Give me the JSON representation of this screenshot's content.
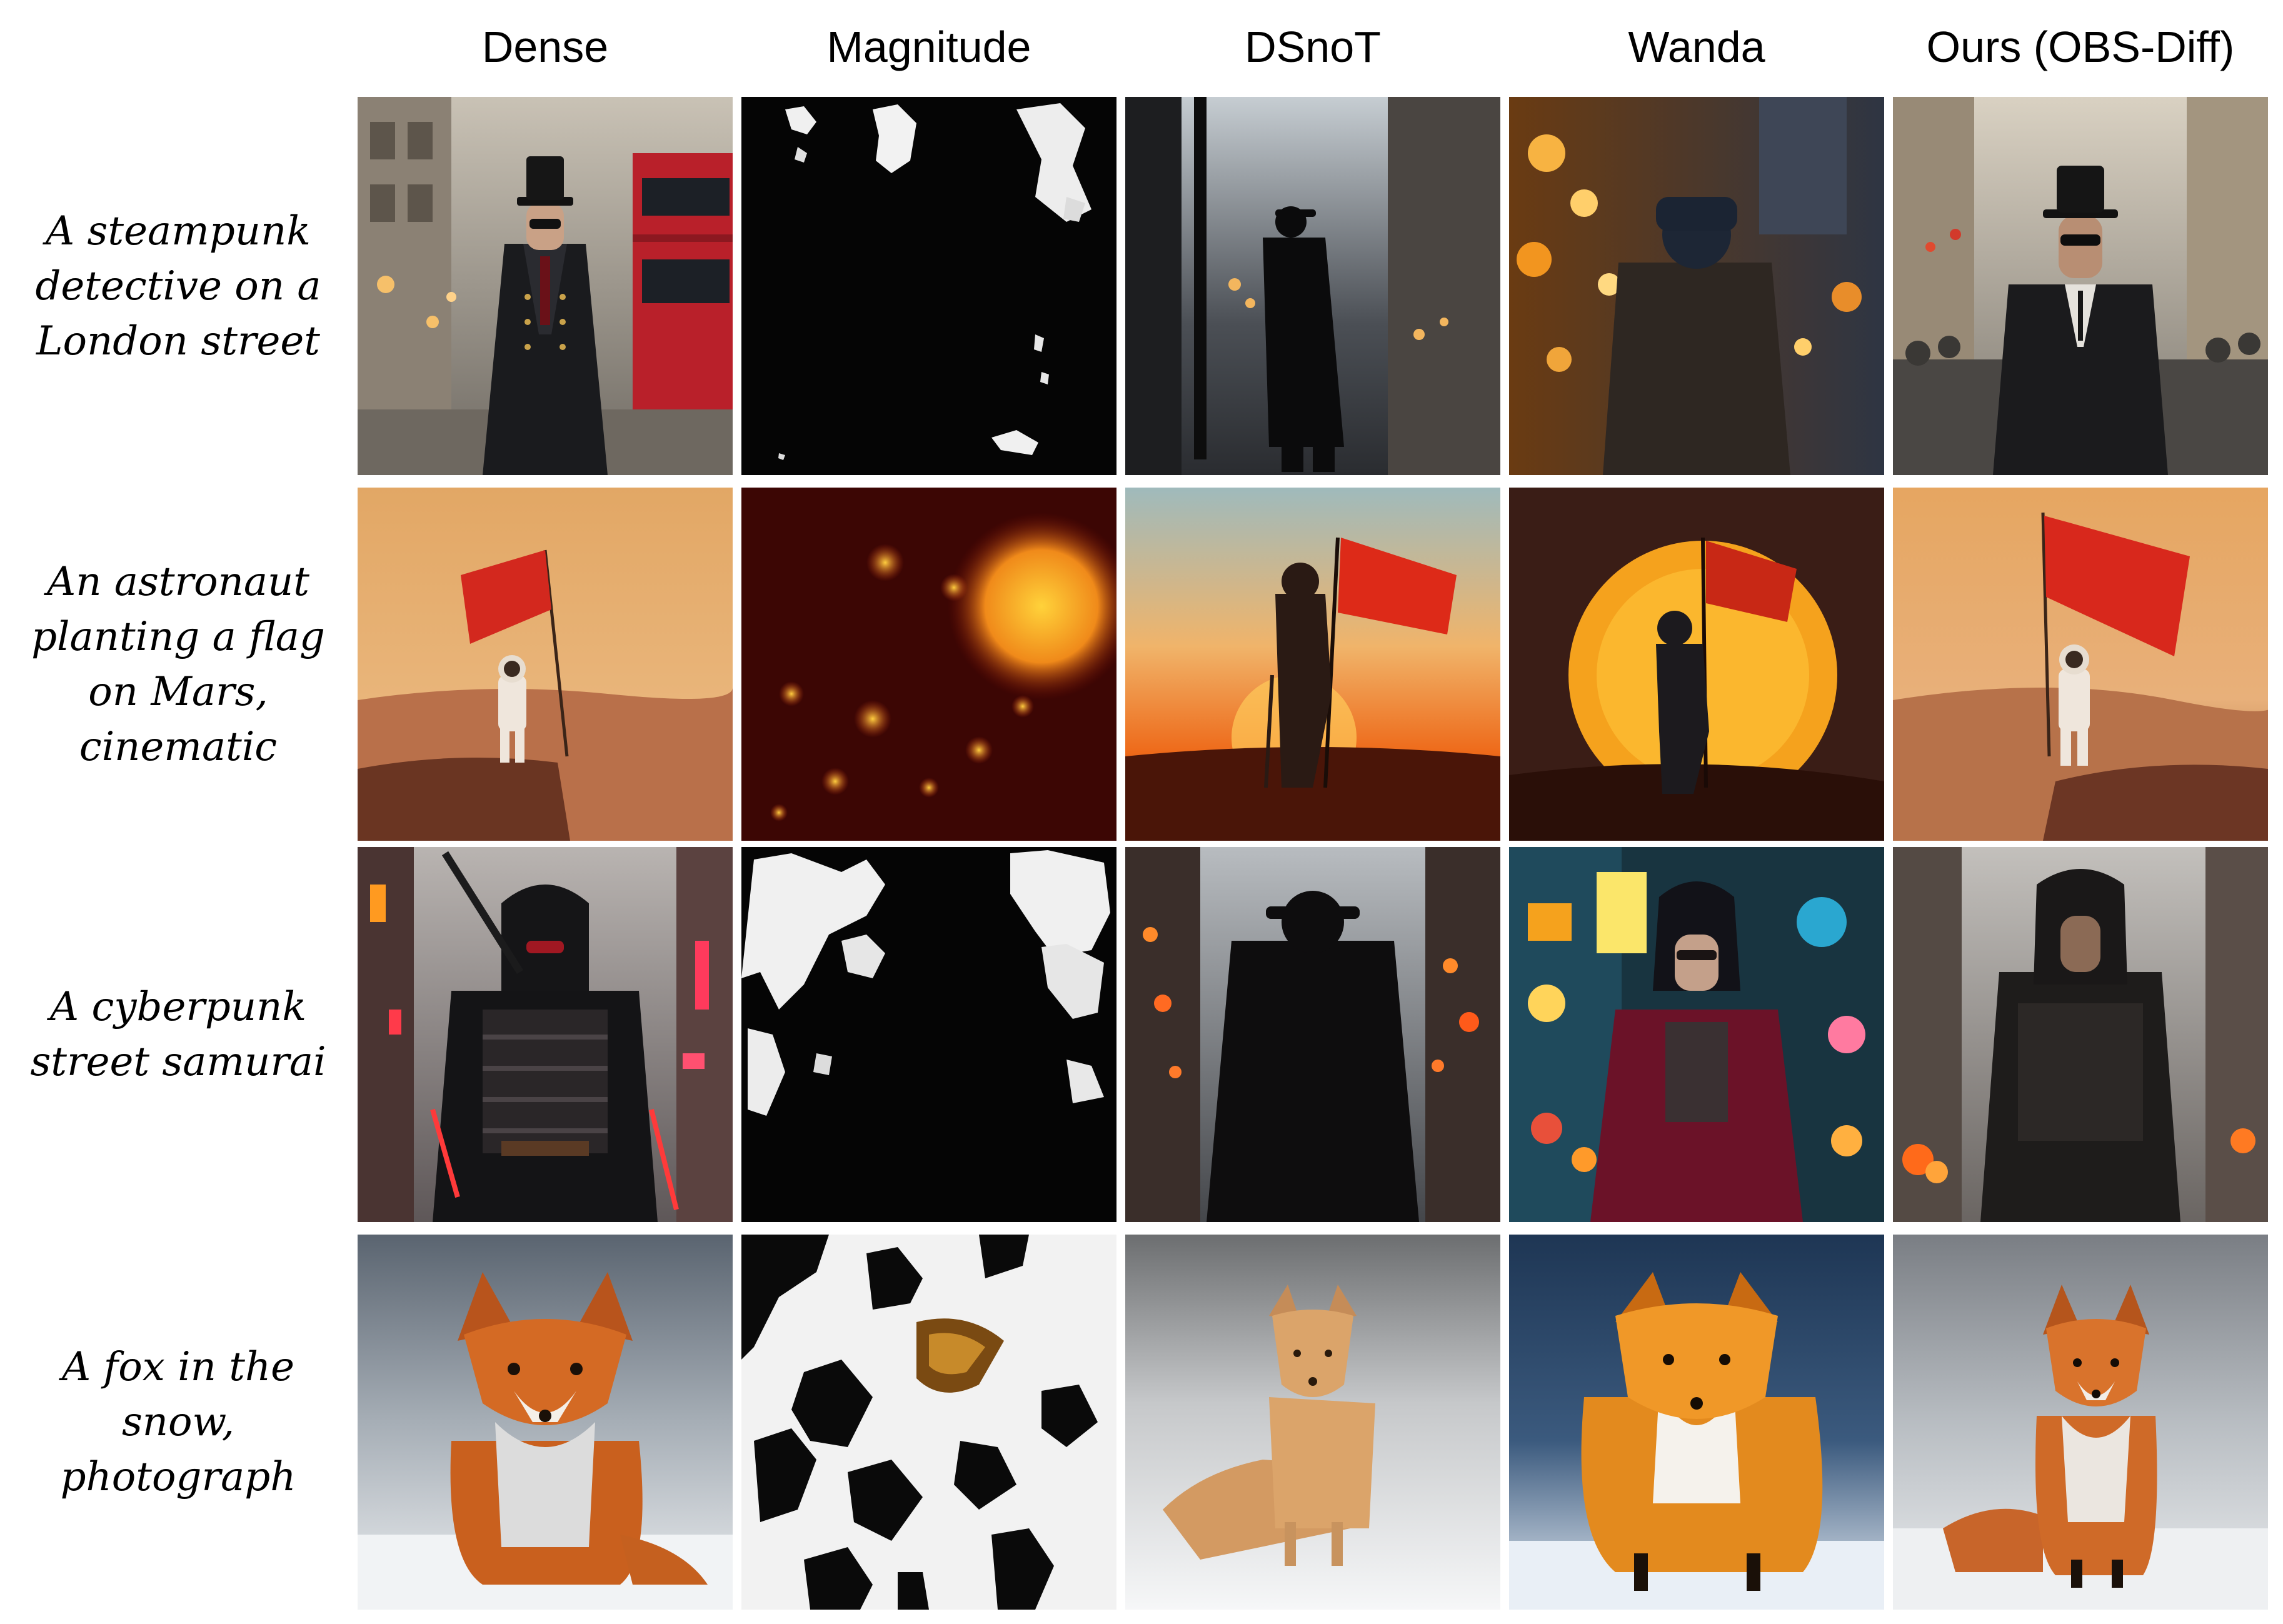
{
  "figure": {
    "columns": [
      {
        "label": "Dense"
      },
      {
        "label": "Magnitude"
      },
      {
        "label": "DSnoT"
      },
      {
        "label": "Wanda"
      },
      {
        "label": "Ours (OBS-Diff)"
      }
    ],
    "rows": [
      {
        "prompt": "A steampunk detective on a London street",
        "cells": [
          "Dense result: man in top hat and sunglasses, dark overcoat, on a London street with red double-decker bus",
          "Magnitude result: black image with white noise blotches",
          "DSnoT result: silhouette of figure in hat and coat on dim city street",
          "Wanda result: figure from behind in hat with orange bokeh city lights",
          "Ours result: man in top hat and sunglasses, dark coat, on a crowded street"
        ]
      },
      {
        "prompt": "An astronaut planting a flag on Mars, cinematic",
        "cells": [
          "Dense result: astronaut in white suit holding red flag on martian hilltop",
          "Magnitude result: dark red noise with orange glowing blobs",
          "DSnoT result: hooded silhouette holding red flag against orange sunset",
          "Wanda result: silhouette with flag in front of large orange sun",
          "Ours result: astronaut in white suit holding red flag on martian terrain"
        ]
      },
      {
        "prompt": "A cyberpunk street samurai",
        "cells": [
          "Dense result: hooded armored samurai with swords on neon-lit street",
          "Magnitude result: black image with white noise patches",
          "DSnoT result: figure in hat and long coat seen from behind, city bokeh",
          "Wanda result: woman in red robe on neon city street at night",
          "Ours result: hooded figure in dark armor on smoky street"
        ]
      },
      {
        "prompt": "A fox in the snow, photograph",
        "cells": [
          "Dense result: red fox sitting in snow, facing the camera",
          "Magnitude result: black and white speckled noise with brown blob",
          "DSnoT result: small pale fox walking through snow",
          "Wanda result: orange fox standing in snowy city street",
          "Ours result: red fox sitting in snow, facing the camera"
        ]
      }
    ]
  }
}
